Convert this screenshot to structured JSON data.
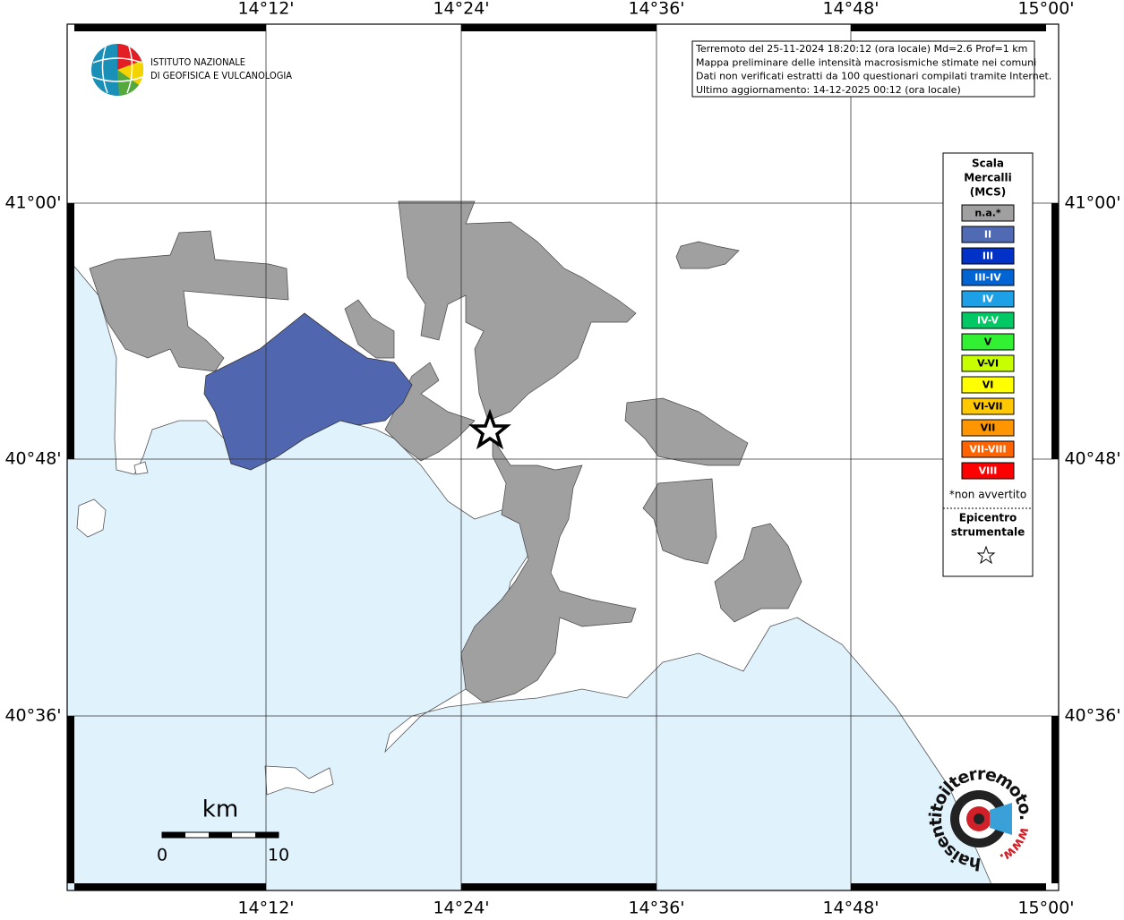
{
  "frame": {
    "top_labels": [
      "14°12'",
      "14°24'",
      "14°36'",
      "14°48'",
      "15°00'"
    ],
    "bottom_labels": [
      "14°12'",
      "14°24'",
      "14°36'",
      "14°48'",
      "15°00'"
    ],
    "left_labels": [
      "41°00'",
      "40°48'",
      "40°36'"
    ],
    "right_labels": [
      "41°00'",
      "40°48'",
      "40°36'"
    ]
  },
  "logo": {
    "lines": [
      "ISTITUTO NAZIONALE",
      "DI GEOFISICA E VULCANOLOGIA"
    ]
  },
  "info": {
    "lines": [
      "Terremoto del 25-11-2024 18:20:12 (ora locale) Md=2.6 Prof=1 km",
      "Mappa preliminare delle intensità macrosismiche stimate nei comuni",
      "Dati non verificati estratti da 100 questionari compilati tramite Internet.",
      "Ultimo aggiornamento: 14-12-2025 00:12 (ora locale)"
    ]
  },
  "legend": {
    "title": [
      "Scala",
      "Mercalli",
      "(MCS)"
    ],
    "items": [
      {
        "label": "n.a.*",
        "color": "#a0a0a0"
      },
      {
        "label": "II",
        "color": "#506ab4"
      },
      {
        "label": "III",
        "color": "#0032c8"
      },
      {
        "label": "III-IV",
        "color": "#0064d2"
      },
      {
        "label": "IV",
        "color": "#1ea0e6"
      },
      {
        "label": "IV-V",
        "color": "#00c864"
      },
      {
        "label": "V",
        "color": "#32f032"
      },
      {
        "label": "V-VI",
        "color": "#c8ff00"
      },
      {
        "label": "VI",
        "color": "#ffff00"
      },
      {
        "label": "VI-VII",
        "color": "#ffc800"
      },
      {
        "label": "VII",
        "color": "#ff9600"
      },
      {
        "label": "VII-VIII",
        "color": "#ff6400"
      },
      {
        "label": "VIII",
        "color": "#ff0000"
      }
    ],
    "note": "*non avvertito",
    "epicenter": [
      "Epicentro",
      "strumentale"
    ]
  },
  "scale": {
    "unit": "km",
    "labels": [
      "0",
      "10"
    ]
  },
  "badge": {
    "site": "haisentitoilterremoto.it",
    "prefix": "www."
  }
}
